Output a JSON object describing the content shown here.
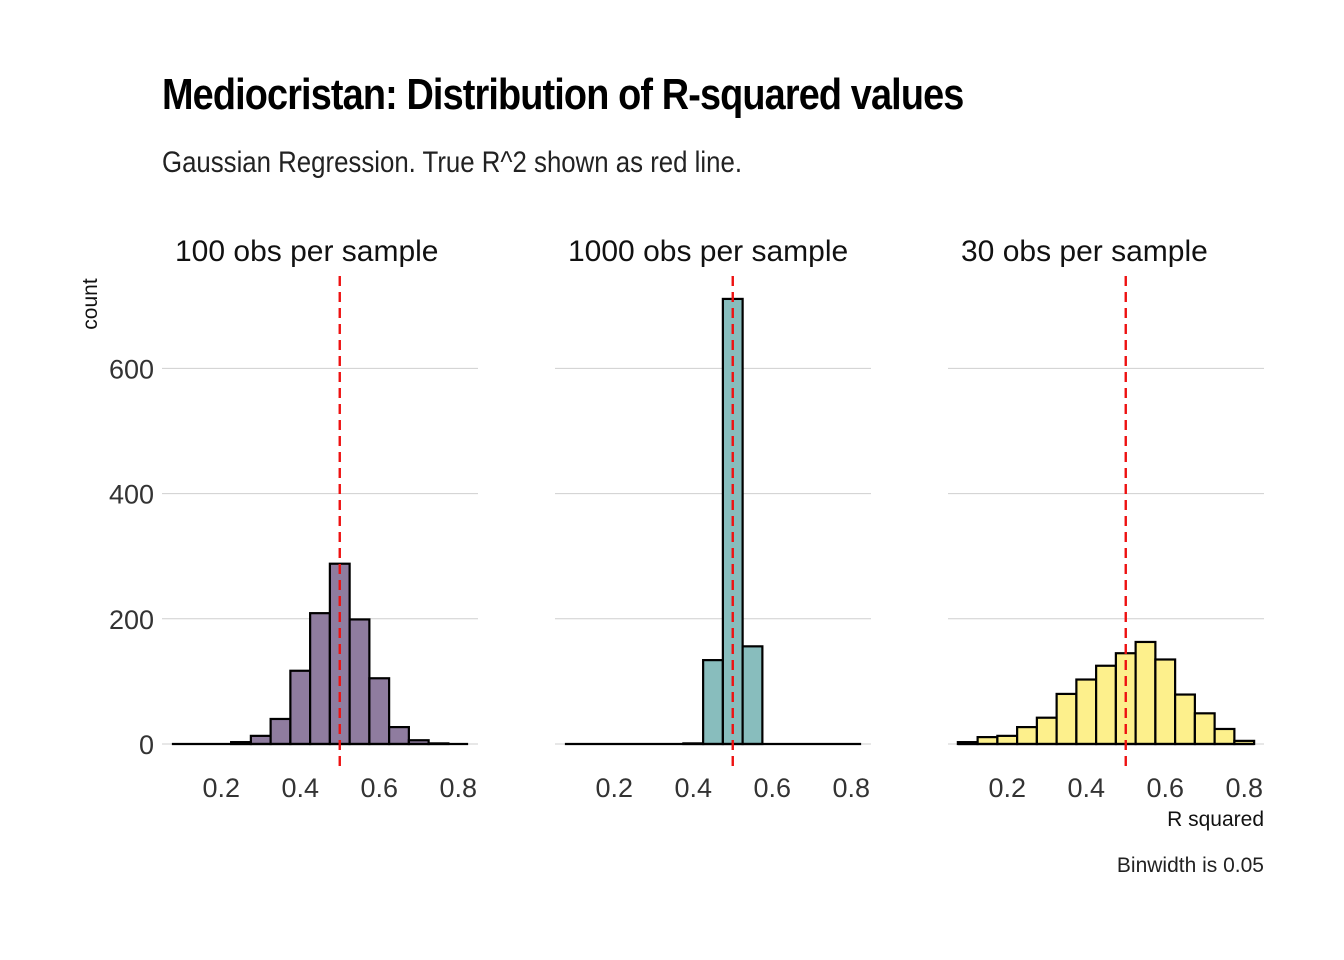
{
  "title": "Mediocristan: Distribution of R-squared values",
  "subtitle": "Gaussian Regression. True R^2 shown as red line.",
  "caption": "Binwidth is 0.05",
  "chart_data": {
    "type": "bar",
    "ylabel": "count",
    "xlabel": "R squared",
    "x_ticks": [
      0.2,
      0.4,
      0.6,
      0.8
    ],
    "y_ticks": [
      0,
      200,
      400,
      600
    ],
    "xlim": [
      0.05,
      0.85
    ],
    "ylim": [
      0,
      760
    ],
    "binwidth": 0.05,
    "true_r2": 0.5,
    "grid": true,
    "facets": [
      {
        "name": "100 obs per sample",
        "fill": "#8f7c9f",
        "bins": [
          {
            "x": 0.1,
            "count": 0
          },
          {
            "x": 0.15,
            "count": 0
          },
          {
            "x": 0.2,
            "count": 0
          },
          {
            "x": 0.25,
            "count": 3
          },
          {
            "x": 0.3,
            "count": 13
          },
          {
            "x": 0.35,
            "count": 40
          },
          {
            "x": 0.4,
            "count": 117
          },
          {
            "x": 0.45,
            "count": 209
          },
          {
            "x": 0.5,
            "count": 288
          },
          {
            "x": 0.55,
            "count": 199
          },
          {
            "x": 0.6,
            "count": 105
          },
          {
            "x": 0.65,
            "count": 27
          },
          {
            "x": 0.7,
            "count": 6
          },
          {
            "x": 0.75,
            "count": 1
          },
          {
            "x": 0.8,
            "count": 0
          }
        ]
      },
      {
        "name": "1000 obs per sample",
        "fill": "#88bdbd",
        "bins": [
          {
            "x": 0.1,
            "count": 0
          },
          {
            "x": 0.15,
            "count": 0
          },
          {
            "x": 0.2,
            "count": 0
          },
          {
            "x": 0.25,
            "count": 0
          },
          {
            "x": 0.3,
            "count": 0
          },
          {
            "x": 0.35,
            "count": 0
          },
          {
            "x": 0.4,
            "count": 1
          },
          {
            "x": 0.45,
            "count": 134
          },
          {
            "x": 0.5,
            "count": 711
          },
          {
            "x": 0.55,
            "count": 156
          },
          {
            "x": 0.6,
            "count": 0
          },
          {
            "x": 0.65,
            "count": 0
          },
          {
            "x": 0.7,
            "count": 0
          },
          {
            "x": 0.75,
            "count": 0
          },
          {
            "x": 0.8,
            "count": 0
          }
        ]
      },
      {
        "name": "30 obs per sample",
        "fill": "#fdf08c",
        "bins": [
          {
            "x": 0.1,
            "count": 3
          },
          {
            "x": 0.15,
            "count": 11
          },
          {
            "x": 0.2,
            "count": 13
          },
          {
            "x": 0.25,
            "count": 27
          },
          {
            "x": 0.3,
            "count": 42
          },
          {
            "x": 0.35,
            "count": 80
          },
          {
            "x": 0.4,
            "count": 103
          },
          {
            "x": 0.45,
            "count": 125
          },
          {
            "x": 0.5,
            "count": 145
          },
          {
            "x": 0.55,
            "count": 163
          },
          {
            "x": 0.6,
            "count": 135
          },
          {
            "x": 0.65,
            "count": 79
          },
          {
            "x": 0.7,
            "count": 49
          },
          {
            "x": 0.75,
            "count": 24
          },
          {
            "x": 0.8,
            "count": 5
          }
        ]
      }
    ]
  }
}
